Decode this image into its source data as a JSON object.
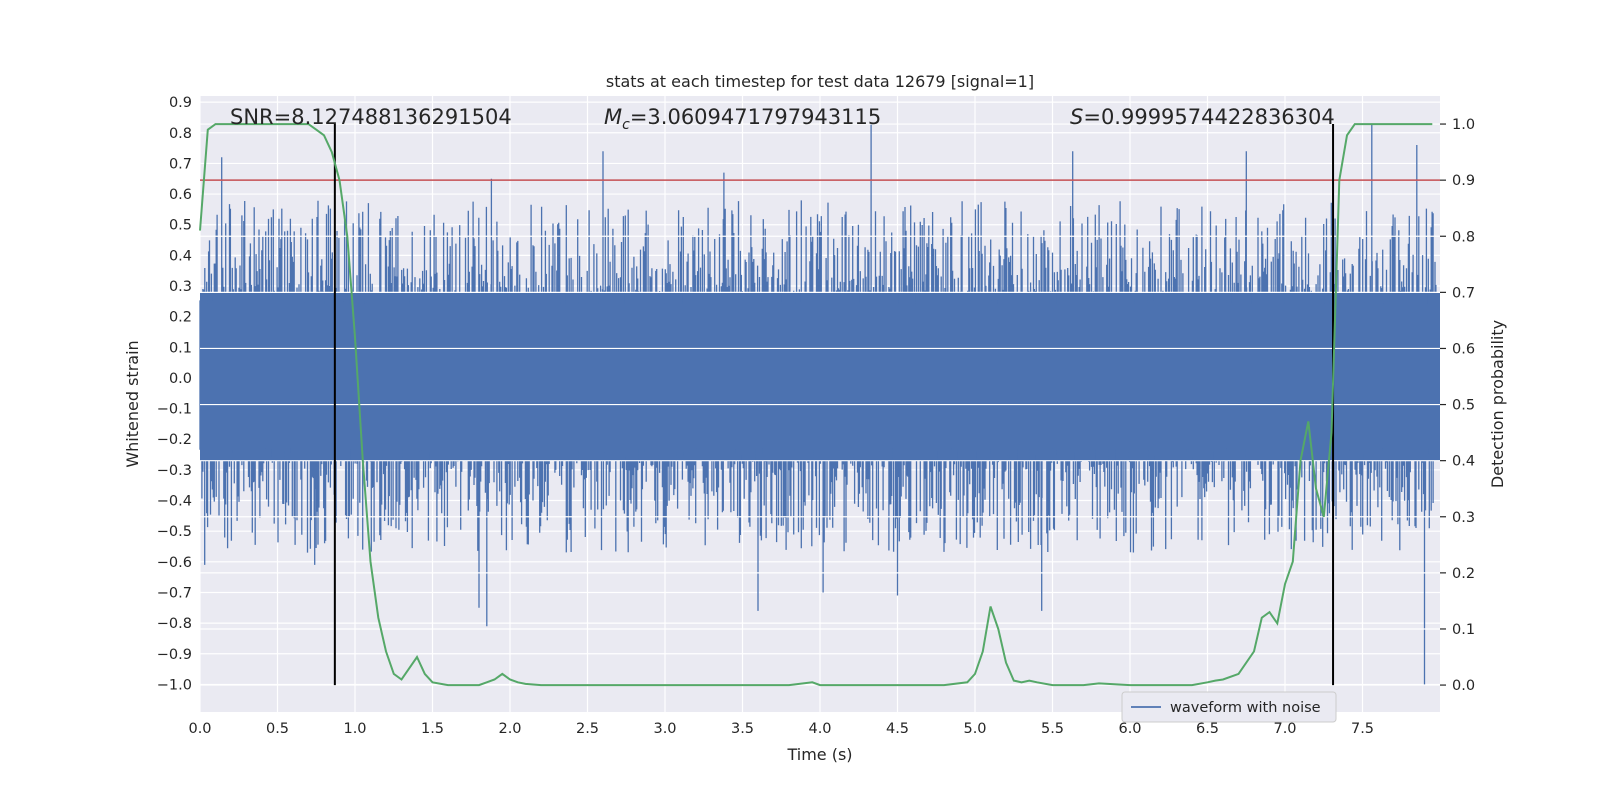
{
  "chart_data": {
    "type": "line",
    "title": "stats at each timestep for test data 12679 [signal=1]",
    "xlabel": "Time (s)",
    "ylabel": "Whitened strain",
    "y2label": "Detection probability",
    "xlim": [
      0.0,
      8.0
    ],
    "ylim": [
      -1.09,
      0.92
    ],
    "y2lim": [
      -0.048,
      1.05
    ],
    "x_ticks": [
      0.0,
      0.5,
      1.0,
      1.5,
      2.0,
      2.5,
      3.0,
      3.5,
      4.0,
      4.5,
      5.0,
      5.5,
      6.0,
      6.5,
      7.0,
      7.5
    ],
    "x_tick_labels": [
      "0.0",
      "0.5",
      "1.0",
      "1.5",
      "2.0",
      "2.5",
      "3.0",
      "3.5",
      "4.0",
      "4.5",
      "5.0",
      "5.5",
      "6.0",
      "6.5",
      "7.0",
      "7.5"
    ],
    "y_ticks": [
      0.9,
      0.8,
      0.7,
      0.6,
      0.5,
      0.4,
      0.3,
      0.2,
      0.1,
      0.0,
      -0.1,
      -0.2,
      -0.3,
      -0.4,
      -0.5,
      -0.6,
      -0.7,
      -0.8,
      -0.9,
      -1.0
    ],
    "y_tick_labels": [
      "0.9",
      "0.8",
      "0.7",
      "0.6",
      "0.5",
      "0.4",
      "0.3",
      "0.2",
      "0.1",
      "0.0",
      "−0.1",
      "−0.2",
      "−0.3",
      "−0.4",
      "−0.5",
      "−0.6",
      "−0.7",
      "−0.8",
      "−0.9",
      "−1.0"
    ],
    "y2_ticks": [
      1.0,
      0.9,
      0.8,
      0.7,
      0.6,
      0.5,
      0.4,
      0.3,
      0.2,
      0.1,
      0.0
    ],
    "y2_tick_labels": [
      "1.0",
      "0.9",
      "0.8",
      "0.7",
      "0.6",
      "0.5",
      "0.4",
      "0.3",
      "0.2",
      "0.1",
      "0.0"
    ],
    "grid": true,
    "legend": {
      "entries": [
        "waveform with noise"
      ],
      "location": "lower-right"
    },
    "annotations": {
      "snr": "SNR=8.127488136291504",
      "mc_symbol": "M",
      "mc_sub": "c",
      "mc_value": "=3.0609471797943115",
      "s_symbol": "S",
      "s_value": "=0.9999574422836304"
    },
    "threshold": {
      "value": 0.9,
      "axis": "right",
      "color": "#c44e52"
    },
    "vertical_lines": [
      0.87,
      7.31
    ],
    "waveform": {
      "name": "waveform with noise",
      "color": "#4c72b0",
      "envelope_upper": 0.28,
      "envelope_lower": -0.27,
      "peaks": [
        {
          "x": 0.14,
          "y": 0.72
        },
        {
          "x": 1.88,
          "y": 0.65
        },
        {
          "x": 2.6,
          "y": 0.74
        },
        {
          "x": 3.38,
          "y": 0.67
        },
        {
          "x": 4.33,
          "y": 0.83
        },
        {
          "x": 5.63,
          "y": 0.74
        },
        {
          "x": 6.75,
          "y": 0.74
        },
        {
          "x": 7.56,
          "y": 0.83
        },
        {
          "x": 7.85,
          "y": 0.76
        }
      ],
      "troughs": [
        {
          "x": 0.03,
          "y": -0.61
        },
        {
          "x": 0.74,
          "y": -0.61
        },
        {
          "x": 1.85,
          "y": -0.81
        },
        {
          "x": 1.8,
          "y": -0.75
        },
        {
          "x": 3.6,
          "y": -0.76
        },
        {
          "x": 4.02,
          "y": -0.7
        },
        {
          "x": 4.5,
          "y": -0.71
        },
        {
          "x": 5.43,
          "y": -0.76
        },
        {
          "x": 7.9,
          "y": -1.0
        }
      ]
    },
    "detection_probability": {
      "name": "Detection probability",
      "color": "#55a868",
      "x": [
        0.0,
        0.05,
        0.1,
        0.2,
        0.3,
        0.5,
        0.7,
        0.75,
        0.8,
        0.85,
        0.9,
        0.95,
        1.0,
        1.05,
        1.1,
        1.15,
        1.2,
        1.25,
        1.3,
        1.35,
        1.4,
        1.45,
        1.5,
        1.6,
        1.7,
        1.8,
        1.85,
        1.9,
        1.95,
        2.0,
        2.05,
        2.1,
        2.2,
        2.4,
        2.6,
        2.8,
        3.0,
        3.2,
        3.4,
        3.6,
        3.8,
        3.95,
        4.0,
        4.1,
        4.2,
        4.4,
        4.6,
        4.8,
        4.95,
        5.0,
        5.05,
        5.1,
        5.15,
        5.2,
        5.25,
        5.3,
        5.35,
        5.4,
        5.5,
        5.7,
        5.8,
        6.0,
        6.2,
        6.4,
        6.5,
        6.55,
        6.6,
        6.7,
        6.8,
        6.85,
        6.9,
        6.95,
        7.0,
        7.05,
        7.1,
        7.15,
        7.2,
        7.25,
        7.3,
        7.35,
        7.4,
        7.45,
        7.5,
        7.6,
        7.8,
        7.95
      ],
      "y": [
        0.81,
        0.99,
        1.0,
        1.0,
        1.0,
        1.0,
        1.0,
        0.99,
        0.98,
        0.95,
        0.9,
        0.8,
        0.62,
        0.4,
        0.22,
        0.12,
        0.06,
        0.02,
        0.01,
        0.03,
        0.05,
        0.02,
        0.005,
        0.0,
        0.0,
        0.0,
        0.005,
        0.01,
        0.02,
        0.01,
        0.005,
        0.002,
        0.0,
        0.0,
        0.0,
        0.0,
        0.0,
        0.0,
        0.0,
        0.0,
        0.0,
        0.005,
        0.0,
        0.0,
        0.0,
        0.0,
        0.0,
        0.0,
        0.005,
        0.02,
        0.06,
        0.14,
        0.1,
        0.04,
        0.008,
        0.005,
        0.008,
        0.005,
        0.0,
        0.0,
        0.003,
        0.0,
        0.0,
        0.0,
        0.005,
        0.008,
        0.01,
        0.02,
        0.06,
        0.12,
        0.13,
        0.11,
        0.18,
        0.22,
        0.4,
        0.47,
        0.35,
        0.3,
        0.45,
        0.9,
        0.98,
        1.0,
        1.0,
        1.0,
        1.0,
        1.0
      ]
    }
  }
}
